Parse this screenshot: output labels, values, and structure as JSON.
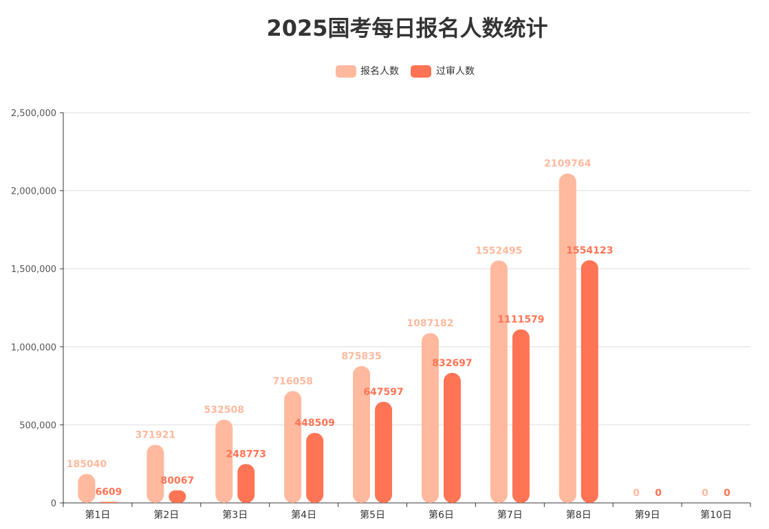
{
  "chart_data": {
    "type": "bar",
    "title": "2025国考每日报名人数统计",
    "categories": [
      "第1日",
      "第2日",
      "第3日",
      "第4日",
      "第5日",
      "第6日",
      "第7日",
      "第8日",
      "第9日",
      "第10日"
    ],
    "series": [
      {
        "name": "报名人数",
        "color": "#FFB99E",
        "values": [
          185040,
          371921,
          532508,
          716058,
          875835,
          1087182,
          1552495,
          2109764,
          0,
          0
        ]
      },
      {
        "name": "过审人数",
        "color": "#FF7454",
        "values": [
          6609,
          80067,
          248773,
          448509,
          647597,
          832697,
          1111579,
          1554123,
          0,
          0
        ]
      }
    ],
    "ylim": [
      0,
      2500000
    ],
    "yticks": [
      0,
      500000,
      1000000,
      1500000,
      2000000,
      2500000
    ],
    "ytick_labels": [
      "0",
      "500,000",
      "1,000,000",
      "1,500,000",
      "2,000,000",
      "2,500,000"
    ],
    "grid": true,
    "legend_position": "top-center"
  }
}
